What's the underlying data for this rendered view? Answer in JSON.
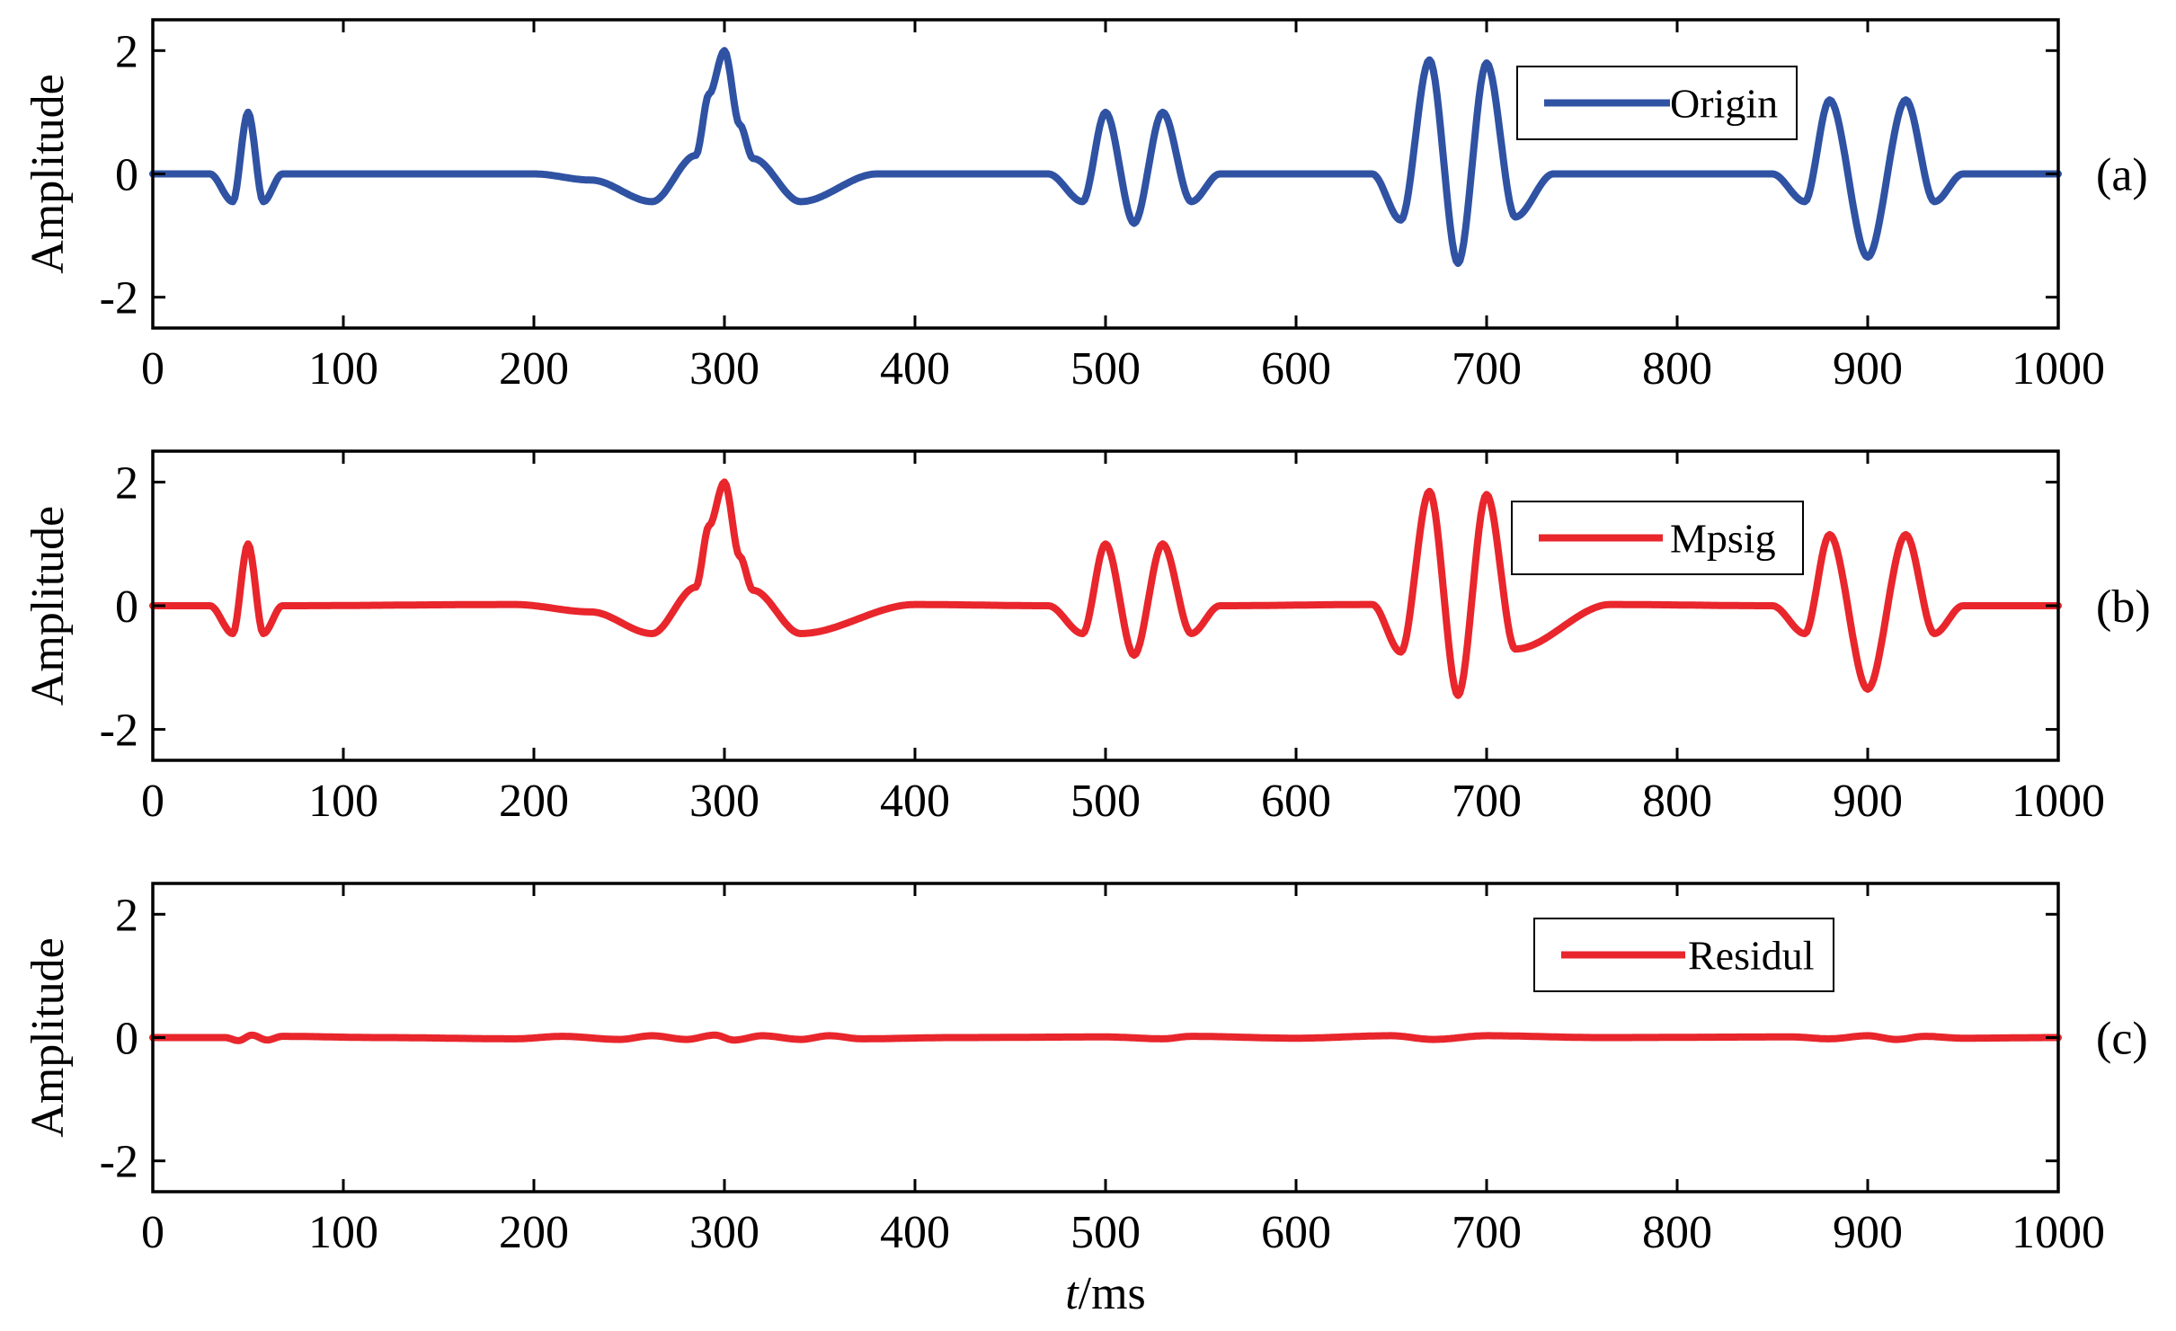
{
  "chart_data": [
    {
      "type": "line",
      "panel_label": "(a)",
      "ylabel": "Amplitude",
      "xlabel": "",
      "xlim": [
        0,
        1000
      ],
      "ylim": [
        -2.5,
        2.5
      ],
      "xticks": [
        "0",
        "100",
        "200",
        "300",
        "400",
        "500",
        "600",
        "700",
        "800",
        "900",
        "1000"
      ],
      "yticks": [
        "2",
        "0",
        "-2"
      ],
      "legend_position": "top-right",
      "series": [
        {
          "name": "Origin",
          "color": "#2f52a3",
          "x": [
            0,
            30,
            42,
            50,
            58,
            68,
            200,
            230,
            262,
            285,
            292,
            300,
            308,
            315,
            340,
            380,
            470,
            488,
            500,
            515,
            530,
            545,
            560,
            640,
            655,
            670,
            685,
            700,
            715,
            735,
            850,
            867,
            880,
            900,
            920,
            935,
            950,
            1000
          ],
          "y": [
            0,
            0,
            -0.45,
            1.0,
            -0.45,
            0,
            0,
            -0.1,
            -0.45,
            0.3,
            1.3,
            2.0,
            0.8,
            0.25,
            -0.45,
            0,
            0,
            -0.45,
            1.0,
            -0.8,
            1.0,
            -0.45,
            0,
            0,
            -0.75,
            1.85,
            -1.45,
            1.8,
            -0.7,
            0,
            0,
            -0.45,
            1.2,
            -1.35,
            1.2,
            -0.45,
            0,
            0
          ]
        }
      ]
    },
    {
      "type": "line",
      "panel_label": "(b)",
      "ylabel": "Amplitude",
      "xlabel": "",
      "xlim": [
        0,
        1000
      ],
      "ylim": [
        -2.5,
        2.5
      ],
      "xticks": [
        "0",
        "100",
        "200",
        "300",
        "400",
        "500",
        "600",
        "700",
        "800",
        "900",
        "1000"
      ],
      "yticks": [
        "2",
        "0",
        "-2"
      ],
      "legend_position": "top-right",
      "series": [
        {
          "name": "Mpsig",
          "color": "#e8262c",
          "x": [
            0,
            30,
            42,
            50,
            58,
            68,
            190,
            230,
            262,
            285,
            292,
            300,
            308,
            315,
            340,
            400,
            470,
            488,
            500,
            515,
            530,
            545,
            560,
            640,
            655,
            670,
            685,
            700,
            715,
            765,
            850,
            867,
            880,
            900,
            920,
            935,
            950,
            1000
          ],
          "y": [
            0,
            0,
            -0.45,
            1.0,
            -0.45,
            0,
            0.02,
            -0.1,
            -0.45,
            0.3,
            1.3,
            2.0,
            0.8,
            0.25,
            -0.45,
            0.02,
            0,
            -0.45,
            1.0,
            -0.8,
            1.0,
            -0.45,
            0,
            0.02,
            -0.75,
            1.85,
            -1.45,
            1.8,
            -0.7,
            0.02,
            0,
            -0.45,
            1.15,
            -1.35,
            1.15,
            -0.45,
            0,
            0
          ]
        }
      ]
    },
    {
      "type": "line",
      "panel_label": "(c)",
      "ylabel": "Amplitude",
      "xlabel": "t/ms",
      "xlim": [
        0,
        1000
      ],
      "ylim": [
        -2.5,
        2.5
      ],
      "xticks": [
        "0",
        "100",
        "200",
        "300",
        "400",
        "500",
        "600",
        "700",
        "800",
        "900",
        "1000"
      ],
      "yticks": [
        "2",
        "0",
        "-2"
      ],
      "legend_position": "top-right",
      "series": [
        {
          "name": "Residul",
          "color": "#e8262c",
          "x": [
            0,
            38,
            45,
            52,
            60,
            68,
            120,
            190,
            215,
            245,
            262,
            280,
            295,
            305,
            320,
            340,
            355,
            372,
            420,
            500,
            530,
            545,
            600,
            650,
            672,
            700,
            760,
            860,
            880,
            900,
            915,
            930,
            950,
            1000
          ],
          "y": [
            0,
            0,
            -0.05,
            0.04,
            -0.04,
            0.02,
            0,
            -0.02,
            0.02,
            -0.03,
            0.03,
            -0.03,
            0.04,
            -0.04,
            0.03,
            -0.03,
            0.03,
            -0.02,
            0,
            0.01,
            -0.02,
            0.02,
            -0.01,
            0.03,
            -0.03,
            0.03,
            0,
            0.01,
            -0.02,
            0.03,
            -0.03,
            0.02,
            -0.01,
            0
          ]
        }
      ]
    }
  ]
}
